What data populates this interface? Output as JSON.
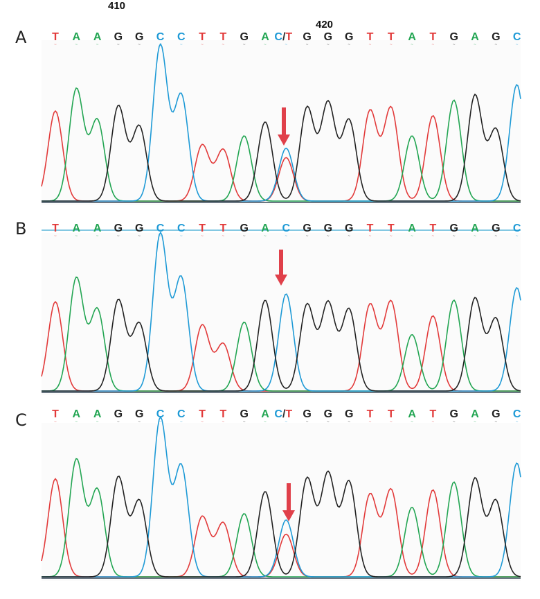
{
  "panels": [
    {
      "label": "A",
      "numbers": [
        "410",
        "420"
      ],
      "bases": [
        "T",
        "A",
        "A",
        "G",
        "G",
        "C",
        "C",
        "T",
        "T",
        "G",
        "A",
        "C/T",
        "G",
        "G",
        "G",
        "T",
        "T",
        "A",
        "T",
        "G",
        "A",
        "G",
        "C"
      ]
    },
    {
      "label": "B",
      "numbers": [],
      "bases": [
        "T",
        "A",
        "A",
        "G",
        "G",
        "C",
        "C",
        "T",
        "T",
        "G",
        "A",
        "C",
        "G",
        "G",
        "G",
        "T",
        "T",
        "A",
        "T",
        "G",
        "A",
        "G",
        "C"
      ]
    },
    {
      "label": "C",
      "numbers": [],
      "bases": [
        "T",
        "A",
        "A",
        "G",
        "G",
        "C",
        "C",
        "T",
        "T",
        "G",
        "A",
        "C/T",
        "G",
        "G",
        "G",
        "T",
        "T",
        "A",
        "T",
        "G",
        "A",
        "G",
        "C"
      ]
    }
  ],
  "colors": {
    "A": "#22a552",
    "C": "#1e9ad6",
    "G": "#222222",
    "T": "#e23a3a",
    "arrow": "#e0404a"
  },
  "chart_data": [
    {
      "type": "line",
      "panel": "A",
      "ylim": [
        0,
        100
      ],
      "x": [
        1,
        2,
        3,
        4,
        5,
        6,
        7,
        8,
        9,
        10,
        11,
        12,
        13,
        14,
        15,
        16,
        17,
        18,
        19,
        20,
        21,
        22,
        23
      ],
      "series": [
        {
          "base": "T",
          "peaks": [
            [
              1,
              58
            ],
            [
              8,
              36
            ],
            [
              9,
              33
            ],
            [
              12,
              28
            ],
            [
              16,
              58
            ],
            [
              17,
              60
            ],
            [
              19,
              55
            ]
          ]
        },
        {
          "base": "A",
          "peaks": [
            [
              2,
              72
            ],
            [
              3,
              52
            ],
            [
              10,
              42
            ],
            [
              18,
              42
            ],
            [
              20,
              65
            ]
          ]
        },
        {
          "base": "C",
          "peaks": [
            [
              6,
              100
            ],
            [
              7,
              68
            ],
            [
              12,
              34
            ],
            [
              23,
              75
            ]
          ]
        },
        {
          "base": "G",
          "peaks": [
            [
              4,
              61
            ],
            [
              5,
              48
            ],
            [
              11,
              51
            ],
            [
              13,
              60
            ],
            [
              14,
              63
            ],
            [
              15,
              52
            ],
            [
              21,
              68
            ],
            [
              22,
              46
            ]
          ]
        }
      ]
    },
    {
      "type": "line",
      "panel": "B",
      "ylim": [
        0,
        100
      ],
      "x": [
        1,
        2,
        3,
        4,
        5,
        6,
        7,
        8,
        9,
        10,
        11,
        12,
        13,
        14,
        15,
        16,
        17,
        18,
        19,
        20,
        21,
        22,
        23
      ],
      "series": [
        {
          "base": "T",
          "peaks": [
            [
              1,
              57
            ],
            [
              8,
              42
            ],
            [
              9,
              30
            ],
            [
              16,
              55
            ],
            [
              17,
              57
            ],
            [
              19,
              48
            ]
          ]
        },
        {
          "base": "A",
          "peaks": [
            [
              2,
              72
            ],
            [
              3,
              52
            ],
            [
              10,
              44
            ],
            [
              18,
              36
            ],
            [
              20,
              58
            ]
          ]
        },
        {
          "base": "C",
          "peaks": [
            [
              6,
              100
            ],
            [
              7,
              72
            ],
            [
              12,
              62
            ],
            [
              23,
              66
            ]
          ]
        },
        {
          "base": "G",
          "peaks": [
            [
              4,
              58
            ],
            [
              5,
              43
            ],
            [
              11,
              58
            ],
            [
              13,
              55
            ],
            [
              14,
              56
            ],
            [
              15,
              52
            ],
            [
              21,
              59
            ],
            [
              22,
              46
            ]
          ]
        }
      ]
    },
    {
      "type": "line",
      "panel": "C",
      "ylim": [
        0,
        100
      ],
      "x": [
        1,
        2,
        3,
        4,
        5,
        6,
        7,
        8,
        9,
        10,
        11,
        12,
        13,
        14,
        15,
        16,
        17,
        18,
        19,
        20,
        21,
        22,
        23
      ],
      "series": [
        {
          "base": "T",
          "peaks": [
            [
              1,
              62
            ],
            [
              8,
              38
            ],
            [
              9,
              34
            ],
            [
              12,
              27
            ],
            [
              16,
              52
            ],
            [
              17,
              55
            ],
            [
              19,
              55
            ]
          ]
        },
        {
          "base": "A",
          "peaks": [
            [
              2,
              74
            ],
            [
              3,
              55
            ],
            [
              10,
              40
            ],
            [
              18,
              44
            ],
            [
              20,
              60
            ]
          ]
        },
        {
          "base": "C",
          "peaks": [
            [
              6,
              100
            ],
            [
              7,
              70
            ],
            [
              12,
              36
            ],
            [
              23,
              72
            ]
          ]
        },
        {
          "base": "G",
          "peaks": [
            [
              4,
              63
            ],
            [
              5,
              48
            ],
            [
              11,
              54
            ],
            [
              13,
              62
            ],
            [
              14,
              65
            ],
            [
              15,
              60
            ],
            [
              21,
              62
            ],
            [
              22,
              48
            ]
          ]
        }
      ]
    }
  ]
}
